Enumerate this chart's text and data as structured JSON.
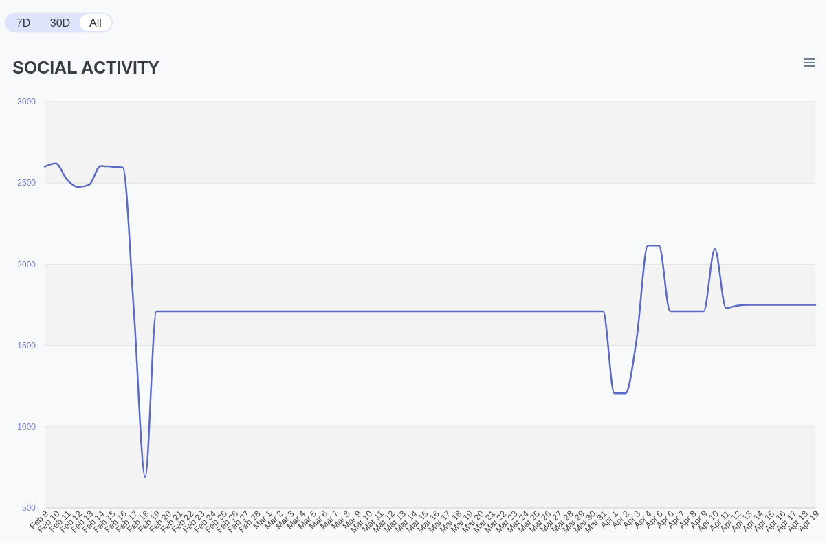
{
  "chart_data": {
    "type": "line",
    "title": "SOCIAL ACTIVITY",
    "annotations": [
      "7D",
      "30D",
      "All"
    ],
    "categories": [
      "Feb 9",
      "Feb 10",
      "Feb 11",
      "Feb 12",
      "Feb 13",
      "Feb 14",
      "Feb 15",
      "Feb 16",
      "Feb 17",
      "Feb 18",
      "Feb 19",
      "Feb 20",
      "Feb 21",
      "Feb 22",
      "Feb 23",
      "Feb 24",
      "Feb 25",
      "Feb 26",
      "Feb 27",
      "Feb 28",
      "Mar 1",
      "Mar 2",
      "Mar 3",
      "Mar 4",
      "Mar 5",
      "Mar 6",
      "Mar 7",
      "Mar 8",
      "Mar 9",
      "Mar 10",
      "Mar 11",
      "Mar 12",
      "Mar 13",
      "Mar 14",
      "Mar 15",
      "Mar 16",
      "Mar 17",
      "Mar 18",
      "Mar 19",
      "Mar 20",
      "Mar 21",
      "Mar 22",
      "Mar 23",
      "Mar 24",
      "Mar 25",
      "Mar 26",
      "Mar 27",
      "Mar 28",
      "Mar 29",
      "Mar 30",
      "Mar 31",
      "Apr 1",
      "Apr 2",
      "Apr 3",
      "Apr 4",
      "Apr 5",
      "Apr 6",
      "Apr 7",
      "Apr 8",
      "Apr 9",
      "Apr 10",
      "Apr 11",
      "Apr 12",
      "Apr 13",
      "Apr 14",
      "Apr 15",
      "Apr 16",
      "Apr 17",
      "Apr 18",
      "Apr 19"
    ],
    "values": [
      2600,
      2620,
      2520,
      2475,
      2490,
      2605,
      2600,
      2595,
      1700,
      690,
      1710,
      1710,
      1710,
      1710,
      1710,
      1710,
      1710,
      1710,
      1710,
      1710,
      1710,
      1710,
      1710,
      1710,
      1710,
      1710,
      1710,
      1710,
      1710,
      1710,
      1710,
      1710,
      1710,
      1710,
      1710,
      1710,
      1710,
      1710,
      1710,
      1710,
      1710,
      1710,
      1710,
      1710,
      1710,
      1710,
      1710,
      1710,
      1710,
      1710,
      1710,
      1205,
      1205,
      1540,
      2115,
      2115,
      1710,
      1710,
      1710,
      1710,
      2095,
      1730,
      1745,
      1750,
      1750,
      1750,
      1750,
      1750,
      1750,
      1750
    ],
    "color": "#5b6bc4",
    "ylim": [
      500,
      3000
    ],
    "yticks": [
      500,
      1000,
      1500,
      2000,
      2500,
      3000
    ],
    "grid": "y",
    "marker": "none",
    "line_style": "solid"
  }
}
